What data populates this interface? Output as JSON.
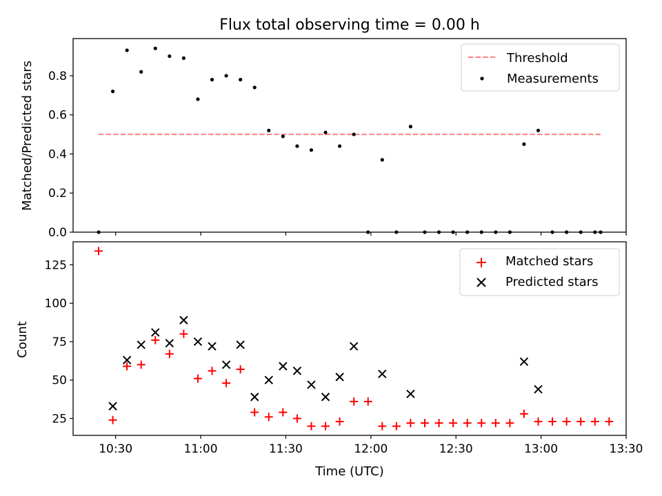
{
  "title": "Flux total observing time = 0.00 h",
  "xlabel": "Time (UTC)",
  "colors": {
    "threshold": "#ff7f7f",
    "measurement": "#000000",
    "matched": "#ff0000",
    "predicted": "#000000"
  },
  "chart_data": [
    {
      "type": "scatter",
      "ylabel": "Matched/Predicted stars",
      "xlim": [
        "10:15",
        "13:30"
      ],
      "ylim": [
        0,
        0.99
      ],
      "yticks": [
        0.0,
        0.2,
        0.4,
        0.6,
        0.8
      ],
      "ytick_labels": [
        "0.0",
        "0.2",
        "0.4",
        "0.6",
        "0.8"
      ],
      "legend": {
        "position": "top-right",
        "entries": [
          "Threshold",
          "Measurements"
        ]
      },
      "threshold": {
        "name": "Threshold",
        "y": 0.5,
        "x_range": [
          "10:24",
          "13:21"
        ]
      },
      "series": [
        {
          "name": "Measurements",
          "x": [
            "10:24",
            "10:29",
            "10:34",
            "10:39",
            "10:44",
            "10:49",
            "10:54",
            "10:59",
            "11:04",
            "11:09",
            "11:14",
            "11:19",
            "11:24",
            "11:29",
            "11:34",
            "11:39",
            "11:44",
            "11:49",
            "11:54",
            "11:59",
            "12:04",
            "12:09",
            "12:14",
            "12:19",
            "12:24",
            "12:29",
            "12:34",
            "12:39",
            "12:44",
            "12:49",
            "12:54",
            "12:59",
            "13:04",
            "13:09",
            "13:14",
            "13:19",
            "13:21"
          ],
          "y": [
            0.0,
            0.72,
            0.93,
            0.82,
            0.94,
            0.9,
            0.89,
            0.68,
            0.78,
            0.8,
            0.78,
            0.74,
            0.52,
            0.49,
            0.44,
            0.42,
            0.51,
            0.44,
            0.5,
            0.0,
            0.37,
            0.0,
            0.54,
            0.0,
            0.0,
            0.0,
            0.0,
            0.0,
            0.0,
            0.0,
            0.45,
            0.52,
            0.0,
            0.0,
            0.0,
            0.0,
            0.0
          ]
        }
      ]
    },
    {
      "type": "scatter",
      "ylabel": "Count",
      "xlim": [
        "10:15",
        "13:30"
      ],
      "ylim": [
        14,
        140
      ],
      "yticks": [
        25,
        50,
        75,
        100,
        125
      ],
      "ytick_labels": [
        "25",
        "50",
        "75",
        "100",
        "125"
      ],
      "xticks": [
        "10:30",
        "11:00",
        "11:30",
        "12:00",
        "12:30",
        "13:00",
        "13:30"
      ],
      "xtick_labels": [
        "10:30",
        "11:00",
        "11:30",
        "12:00",
        "12:30",
        "13:00",
        "13:30"
      ],
      "legend": {
        "position": "top-right",
        "entries": [
          "Matched stars",
          "Predicted stars"
        ]
      },
      "series": [
        {
          "name": "Matched stars",
          "marker": "plus",
          "x": [
            "10:24",
            "10:29",
            "10:34",
            "10:39",
            "10:44",
            "10:49",
            "10:54",
            "10:59",
            "11:04",
            "11:09",
            "11:14",
            "11:19",
            "11:24",
            "11:29",
            "11:34",
            "11:39",
            "11:44",
            "11:49",
            "11:54",
            "11:59",
            "12:04",
            "12:09",
            "12:14",
            "12:19",
            "12:24",
            "12:29",
            "12:34",
            "12:39",
            "12:44",
            "12:49",
            "12:54",
            "12:59",
            "13:04",
            "13:09",
            "13:14",
            "13:19",
            "13:24"
          ],
          "y": [
            134,
            24,
            59,
            60,
            76,
            67,
            80,
            51,
            56,
            48,
            57,
            29,
            26,
            29,
            25,
            20,
            20,
            23,
            36,
            36,
            20,
            20,
            22,
            22,
            22,
            22,
            22,
            22,
            22,
            22,
            28,
            23,
            23,
            23,
            23,
            23,
            23
          ]
        },
        {
          "name": "Predicted stars",
          "marker": "x",
          "x": [
            "10:29",
            "10:34",
            "10:39",
            "10:44",
            "10:49",
            "10:54",
            "10:59",
            "11:04",
            "11:09",
            "11:14",
            "11:19",
            "11:24",
            "11:29",
            "11:34",
            "11:39",
            "11:44",
            "11:49",
            "11:54",
            "12:04",
            "12:14",
            "12:54",
            "12:59"
          ],
          "y": [
            33,
            63,
            73,
            81,
            74,
            89,
            75,
            72,
            60,
            73,
            39,
            50,
            59,
            56,
            47,
            39,
            52,
            72,
            54,
            41,
            62,
            44
          ]
        }
      ]
    }
  ]
}
